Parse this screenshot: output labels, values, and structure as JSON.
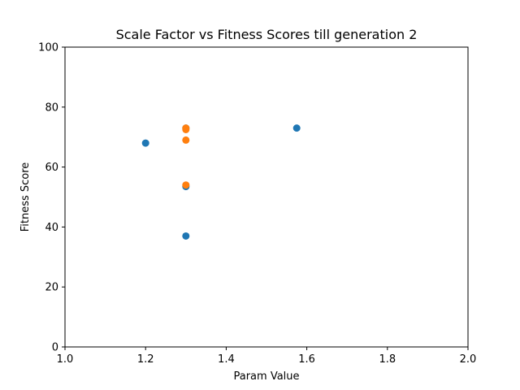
{
  "chart_data": {
    "type": "scatter",
    "title": "Scale Factor vs Fitness Scores till generation 2",
    "xlabel": "Param Value",
    "ylabel": "Fitness Score",
    "xlim": [
      1.0,
      2.0
    ],
    "ylim": [
      0,
      100
    ],
    "xticks": [
      "1.0",
      "1.2",
      "1.4",
      "1.6",
      "1.8",
      "2.0"
    ],
    "yticks": [
      "0",
      "20",
      "40",
      "60",
      "80",
      "100"
    ],
    "grid": false,
    "series": [
      {
        "color": "#1f77b4",
        "x": [
          1.2,
          1.3,
          1.3,
          1.3,
          1.575
        ],
        "y": [
          68,
          37,
          53.5,
          73,
          73
        ]
      },
      {
        "color": "#ff7f0e",
        "x": [
          1.3,
          1.3,
          1.3,
          1.3
        ],
        "y": [
          73,
          72.5,
          69,
          54
        ]
      }
    ]
  }
}
